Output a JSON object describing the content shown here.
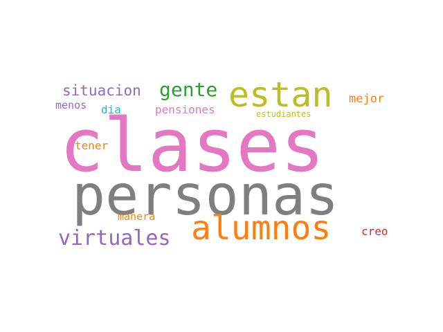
{
  "colors": {
    "background": "#ffffff",
    "pink": "#e377c2",
    "gray": "#7f7f7f",
    "orange": "#ff7f0e",
    "olive": "#bcbd22",
    "purple": "#9467bd",
    "green": "#2ca02c",
    "cyan": "#17becf",
    "red": "#d62728"
  },
  "words": [
    {
      "id": "clases",
      "text": "clases",
      "color": "#e377c2"
    },
    {
      "id": "personas",
      "text": "personas",
      "color": "#7f7f7f"
    },
    {
      "id": "alumnos",
      "text": "alumnos",
      "color": "#ff7f0e"
    },
    {
      "id": "estan",
      "text": "estan",
      "color": "#bcbd22"
    },
    {
      "id": "virtuales",
      "text": "virtuales",
      "color": "#9467bd"
    },
    {
      "id": "gente",
      "text": "gente",
      "color": "#2ca02c"
    },
    {
      "id": "situacion",
      "text": "situacion",
      "color": "#9467bd"
    },
    {
      "id": "menos",
      "text": "menos",
      "color": "#9467bd"
    },
    {
      "id": "dia",
      "text": "dia",
      "color": "#17becf"
    },
    {
      "id": "pensiones",
      "text": "pensiones",
      "color": "#e377c2"
    },
    {
      "id": "estudiantes",
      "text": "estudiantes",
      "color": "#bcbd22"
    },
    {
      "id": "mejor",
      "text": "mejor",
      "color": "#ff7f0e"
    },
    {
      "id": "tener",
      "text": "tener",
      "color": "#ff7f0e"
    },
    {
      "id": "manera",
      "text": "manera",
      "color": "#ff7f0e"
    },
    {
      "id": "creo",
      "text": "creo",
      "color": "#d62728"
    }
  ]
}
